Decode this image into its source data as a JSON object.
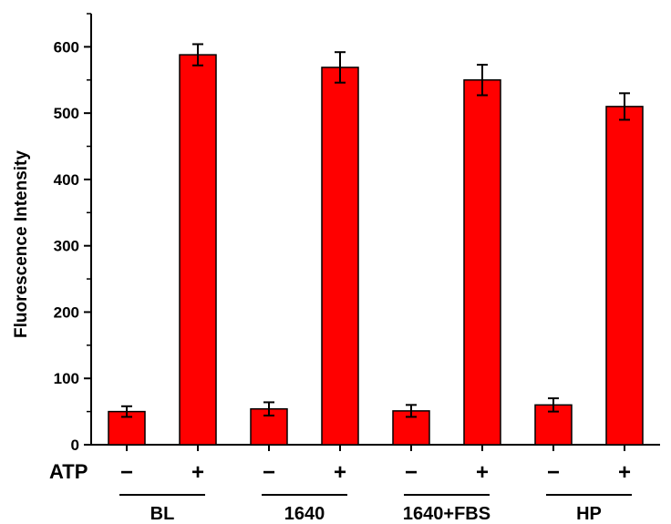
{
  "chart_data": {
    "type": "bar",
    "ylabel": "Fluorescence Intensity",
    "ylim": [
      0,
      650
    ],
    "yticks": [
      0,
      100,
      200,
      300,
      400,
      500,
      600
    ],
    "grid": false,
    "row_label": "ATP",
    "categories": [
      "−",
      "+",
      "−",
      "+",
      "−",
      "+",
      "−",
      "+"
    ],
    "values": [
      50,
      588,
      54,
      569,
      51,
      550,
      60,
      510
    ],
    "errors": [
      8,
      16,
      10,
      23,
      9,
      23,
      10,
      20
    ],
    "groups": [
      "BL",
      "1640",
      "1640+FBS",
      "HP"
    ],
    "bar_color": "#ff0000",
    "edge_color": "#000000"
  }
}
